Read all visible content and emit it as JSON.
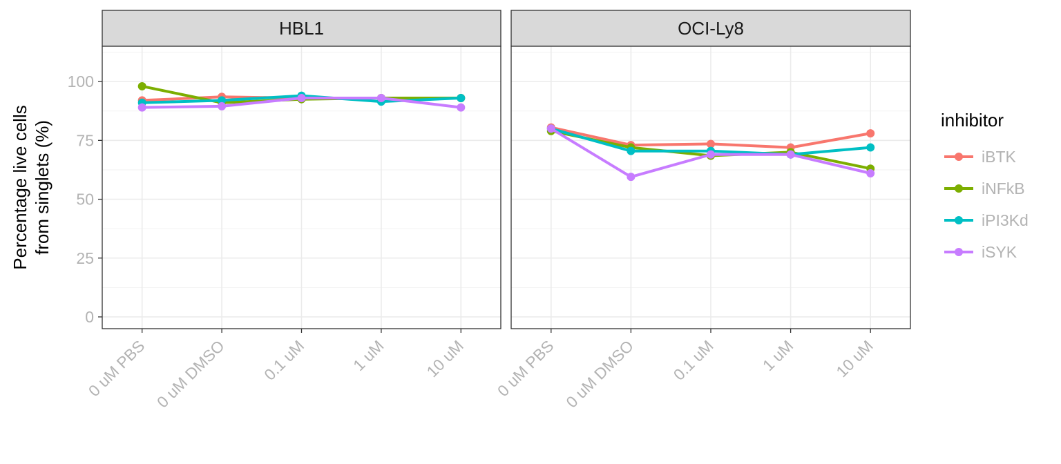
{
  "chart_data": {
    "type": "line",
    "ylabel_lines": [
      "Percentage live cells",
      "from singlets (%)"
    ],
    "ylim": [
      0,
      100
    ],
    "yticks": [
      0,
      25,
      50,
      75,
      100
    ],
    "categories": [
      "0 uM PBS",
      "0 uM DMSO",
      "0.1 uM",
      "1 uM",
      "10 uM"
    ],
    "grid": true,
    "legend": {
      "title": "inhibitor",
      "position": "right",
      "entries": [
        {
          "name": "iBTK",
          "color": "#F8766D"
        },
        {
          "name": "iNFkB",
          "color": "#7CAE00"
        },
        {
          "name": "iPI3Kd",
          "color": "#00BFC4"
        },
        {
          "name": "iSYK",
          "color": "#C77CFF"
        }
      ]
    },
    "panels": [
      {
        "title": "HBL1",
        "series": [
          {
            "name": "iBTK",
            "color": "#F8766D",
            "values": [
              92,
              93.5,
              93,
              93,
              93
            ]
          },
          {
            "name": "iNFkB",
            "color": "#7CAE00",
            "values": [
              98,
              91,
              92.5,
              93,
              93
            ]
          },
          {
            "name": "iPI3Kd",
            "color": "#00BFC4",
            "values": [
              91,
              92,
              94,
              91.5,
              93
            ]
          },
          {
            "name": "iSYK",
            "color": "#C77CFF",
            "values": [
              89,
              89.5,
              93,
              93,
              89
            ]
          }
        ]
      },
      {
        "title": "OCI-Ly8",
        "series": [
          {
            "name": "iBTK",
            "color": "#F8766D",
            "values": [
              80.5,
              73,
              73.5,
              72,
              78
            ]
          },
          {
            "name": "iNFkB",
            "color": "#7CAE00",
            "values": [
              79,
              72,
              68.5,
              70,
              63
            ]
          },
          {
            "name": "iPI3Kd",
            "color": "#00BFC4",
            "values": [
              80,
              70.5,
              70.5,
              69,
              72
            ]
          },
          {
            "name": "iSYK",
            "color": "#C77CFF",
            "values": [
              80,
              59.5,
              69,
              69,
              61
            ]
          }
        ]
      }
    ]
  }
}
